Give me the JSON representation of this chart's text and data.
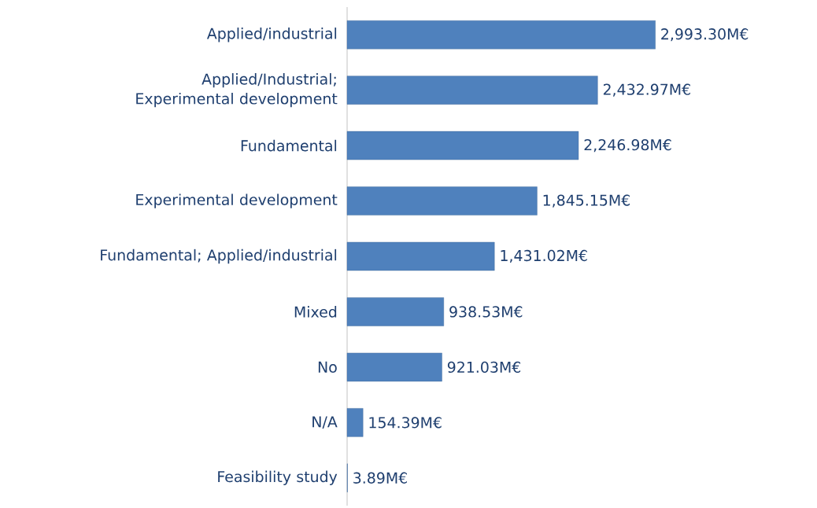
{
  "chart_data": {
    "type": "bar",
    "orientation": "horizontal",
    "categories": [
      "Applied/industrial",
      "Applied/Industrial; Experimental development",
      "Fundamental",
      "Experimental development",
      "Fundamental; Applied/industrial",
      "Mixed",
      "No",
      "N/A",
      "Feasibility study"
    ],
    "values": [
      2993.3,
      2432.97,
      2246.98,
      1845.15,
      1431.02,
      938.53,
      921.03,
      154.39,
      3.89
    ],
    "value_labels": [
      "2,993.30M€",
      "2,432.97M€",
      "2,246.98M€",
      "1,845.15M€",
      "1,431.02M€",
      "938.53M€",
      "921.03M€",
      "154.39M€",
      "3.89M€"
    ],
    "color": "#4f81bd"
  }
}
